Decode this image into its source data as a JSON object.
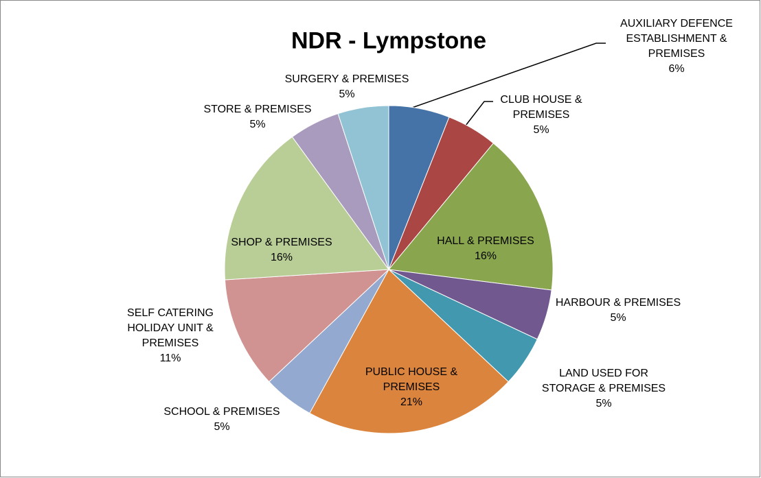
{
  "chart_data": {
    "type": "pie",
    "title": "NDR - Lympstone",
    "categories": [
      "AUXILIARY DEFENCE ESTABLISHMENT & PREMISES",
      "CLUB HOUSE & PREMISES",
      "HALL & PREMISES",
      "HARBOUR & PREMISES",
      "LAND USED FOR STORAGE & PREMISES",
      "PUBLIC HOUSE & PREMISES",
      "SCHOOL & PREMISES",
      "SELF CATERING HOLIDAY UNIT & PREMISES",
      "SHOP & PREMISES",
      "STORE & PREMISES",
      "SURGERY & PREMISES"
    ],
    "values": [
      6,
      5,
      16,
      5,
      5,
      21,
      5,
      11,
      16,
      5,
      5
    ],
    "value_labels": [
      "6%",
      "5%",
      "16%",
      "5%",
      "5%",
      "21%",
      "5%",
      "11%",
      "16%",
      "5%",
      "5%"
    ],
    "colors": [
      "#4572a7",
      "#aa4643",
      "#89a54e",
      "#71588f",
      "#4198af",
      "#db843d",
      "#93a9cf",
      "#d19392",
      "#b9cd96",
      "#a99bbd",
      "#92c3d4"
    ]
  }
}
